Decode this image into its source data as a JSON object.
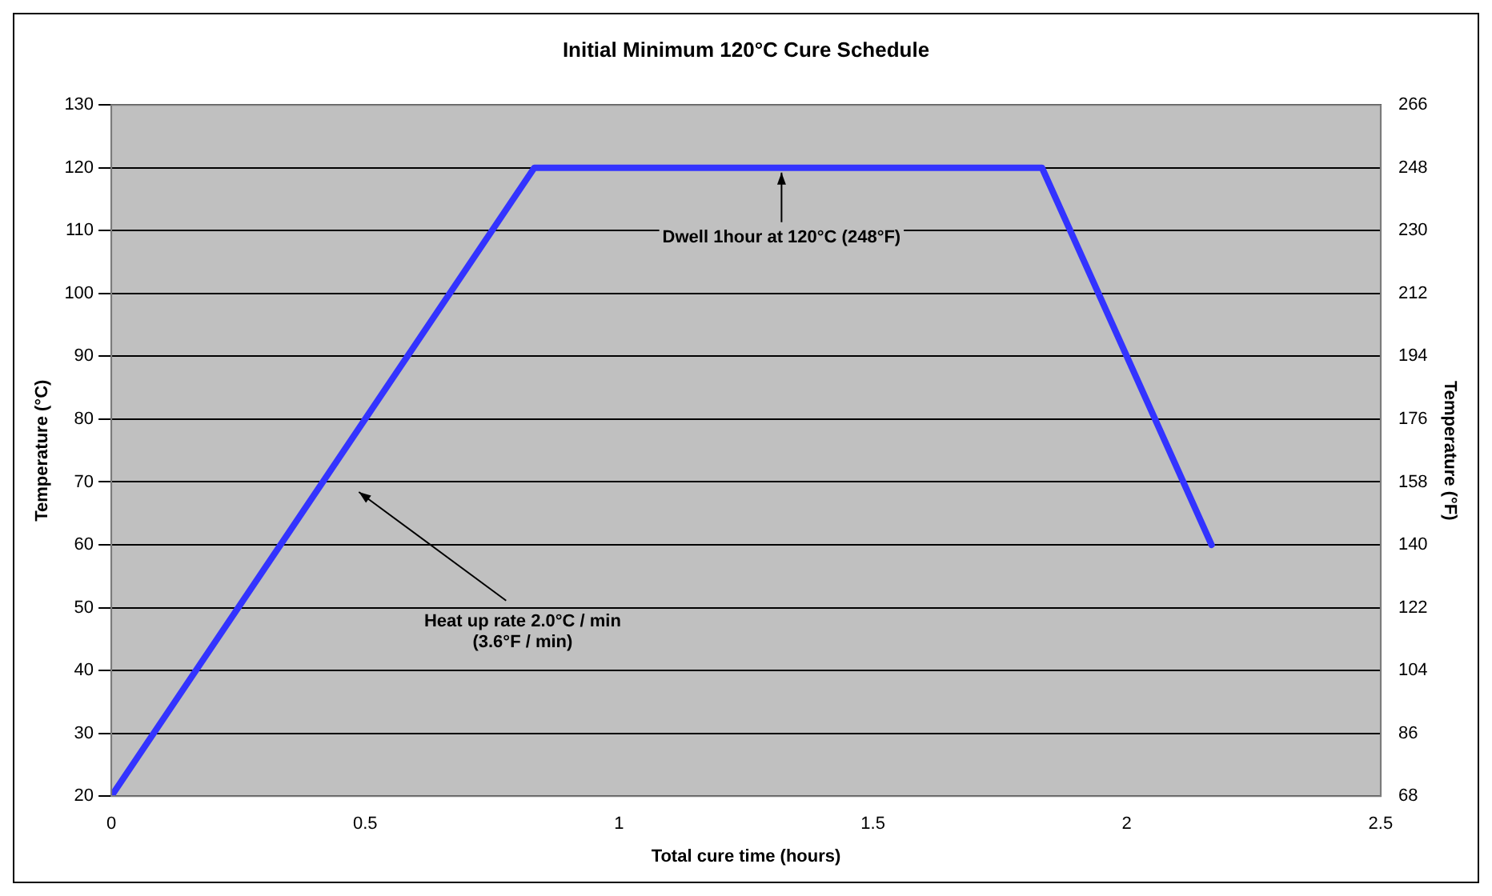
{
  "chart_data": {
    "type": "line",
    "title": "Initial Minimum 120°C Cure Schedule",
    "xlabel": "Total cure time (hours)",
    "ylabel": "Temperature (°C)",
    "y2label": "Temperature (°F)",
    "x": [
      0,
      0.833,
      1.833,
      2.167
    ],
    "series": [
      {
        "color": "#3333ff",
        "values": [
          20,
          120,
          120,
          60
        ]
      }
    ],
    "xlim": [
      0,
      2.5
    ],
    "xticks": [
      0,
      0.5,
      1,
      1.5,
      2,
      2.5
    ],
    "ylim": [
      20,
      130
    ],
    "yticks": [
      20,
      30,
      40,
      50,
      60,
      70,
      80,
      90,
      100,
      110,
      120,
      130
    ],
    "y2lim": [
      68,
      266
    ],
    "y2ticks": [
      68,
      86,
      104,
      122,
      140,
      158,
      176,
      194,
      212,
      230,
      248,
      266
    ],
    "annotations": [
      {
        "text": "Dwell 1hour at 120°C (248°F)",
        "x": 1.32,
        "y": 120
      },
      "Heat up rate 2.0°C / min\n(3.6°F / min)"
    ],
    "grid": "y",
    "legend": false,
    "marker": "none",
    "line_style": "solid"
  }
}
